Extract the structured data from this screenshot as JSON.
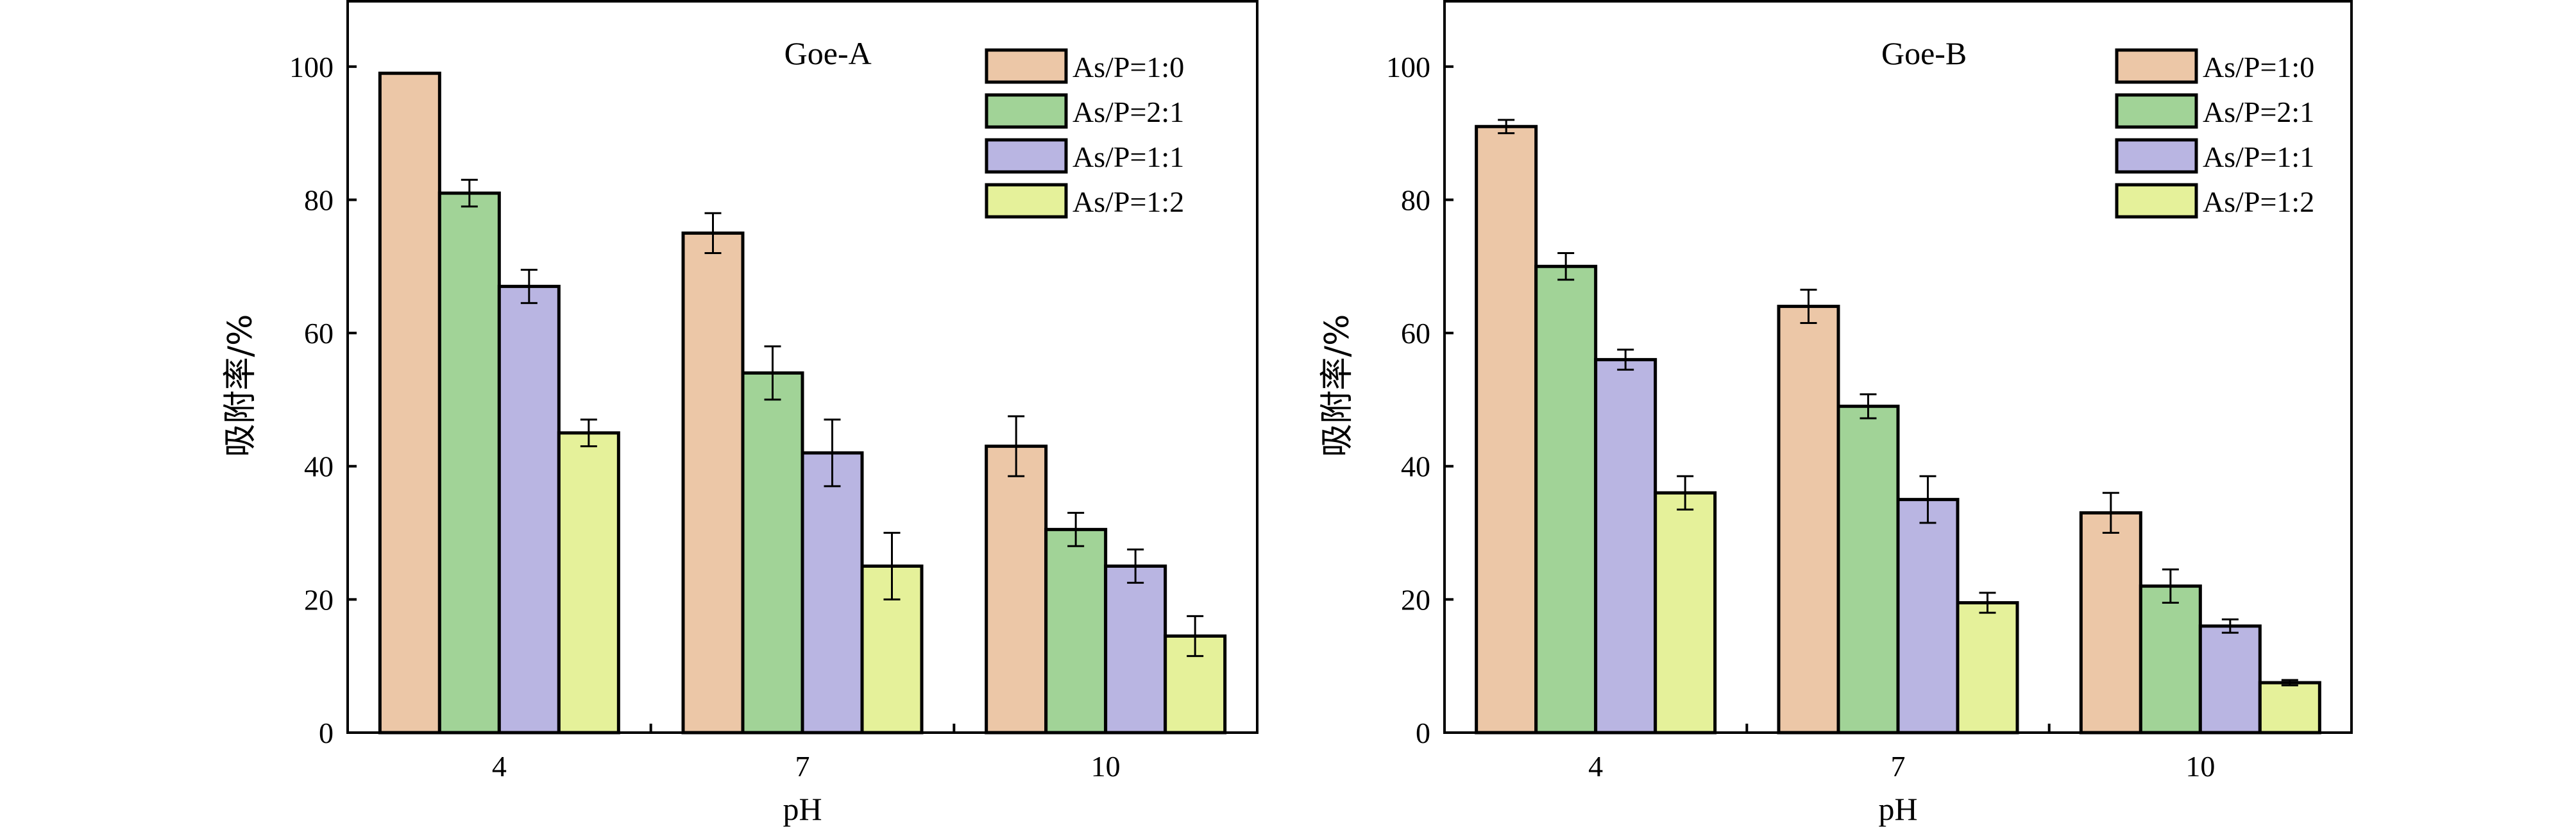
{
  "chart_data": [
    {
      "type": "bar",
      "title": "Goe-A",
      "xlabel": "pH",
      "ylabel": "吸附率/%",
      "categories": [
        "4",
        "7",
        "10"
      ],
      "ylim": [
        0,
        110
      ],
      "yticks": [
        0,
        20,
        40,
        60,
        80,
        100
      ],
      "grid": false,
      "legend": "top-right",
      "series": [
        {
          "name": "As/P=1:0",
          "color": "#ecc7a7",
          "values": [
            99,
            75,
            43
          ],
          "errors": [
            0,
            3,
            4.5
          ]
        },
        {
          "name": "As/P=2:1",
          "color": "#a1d397",
          "values": [
            81,
            54,
            30.5
          ],
          "errors": [
            2,
            4,
            2.5
          ]
        },
        {
          "name": "As/P=1:1",
          "color": "#b9b5e2",
          "values": [
            67,
            42,
            25
          ],
          "errors": [
            2.5,
            5,
            2.5
          ]
        },
        {
          "name": "As/P=1:2",
          "color": "#e5f19a",
          "values": [
            45,
            25,
            14.5
          ],
          "errors": [
            2,
            5,
            3
          ]
        }
      ]
    },
    {
      "type": "bar",
      "title": "Goe-B",
      "xlabel": "pH",
      "ylabel": "吸附率/%",
      "categories": [
        "4",
        "7",
        "10"
      ],
      "ylim": [
        0,
        110
      ],
      "yticks": [
        0,
        20,
        40,
        60,
        80,
        100
      ],
      "grid": false,
      "legend": "top-right",
      "series": [
        {
          "name": "As/P=1:0",
          "color": "#ecc7a7",
          "values": [
            91,
            64,
            33
          ],
          "errors": [
            1,
            2.5,
            3
          ]
        },
        {
          "name": "As/P=2:1",
          "color": "#a1d397",
          "values": [
            70,
            49,
            22
          ],
          "errors": [
            2,
            1.8,
            2.5
          ]
        },
        {
          "name": "As/P=1:1",
          "color": "#b9b5e2",
          "values": [
            56,
            35,
            16
          ],
          "errors": [
            1.5,
            3.5,
            1
          ]
        },
        {
          "name": "As/P=1:2",
          "color": "#e5f19a",
          "values": [
            36,
            19.5,
            7.5
          ],
          "errors": [
            2.5,
            1.5,
            0.4
          ]
        }
      ]
    }
  ]
}
